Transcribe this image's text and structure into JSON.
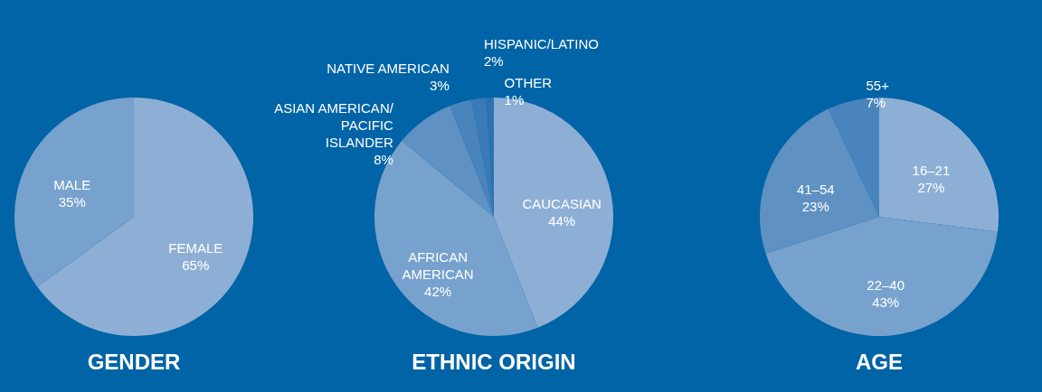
{
  "chart_data": [
    {
      "type": "pie",
      "title": "GENDER",
      "categories": [
        "FEMALE",
        "MALE"
      ],
      "values": [
        65,
        35
      ],
      "value_labels": [
        "65%",
        "35%"
      ],
      "colors": [
        "#8eafd5",
        "#77a2cd"
      ]
    },
    {
      "type": "pie",
      "title": "ETHNIC ORIGIN",
      "categories": [
        "CAUCASIAN",
        "AFRICAN AMERICAN",
        "ASIAN AMERICAN/ PACIFIC ISLANDER",
        "NATIVE AMERICAN",
        "HISPANIC/LATINO",
        "OTHER"
      ],
      "values": [
        44,
        42,
        8,
        3,
        2,
        1
      ],
      "value_labels": [
        "44%",
        "42%",
        "8%",
        "3%",
        "2%",
        "1%"
      ],
      "colors": [
        "#8eafd5",
        "#77a2cd",
        "#5f91c3",
        "#4a84bd",
        "#3a7ab7",
        "#2c72b2"
      ]
    },
    {
      "type": "pie",
      "title": "AGE",
      "categories": [
        "16–21",
        "22–40",
        "41–54",
        "55+"
      ],
      "values": [
        27,
        43,
        23,
        7
      ],
      "value_labels": [
        "27%",
        "43%",
        "23%",
        "7%"
      ],
      "colors": [
        "#8eafd5",
        "#77a2cd",
        "#5f91c3",
        "#4a84bd"
      ]
    }
  ]
}
